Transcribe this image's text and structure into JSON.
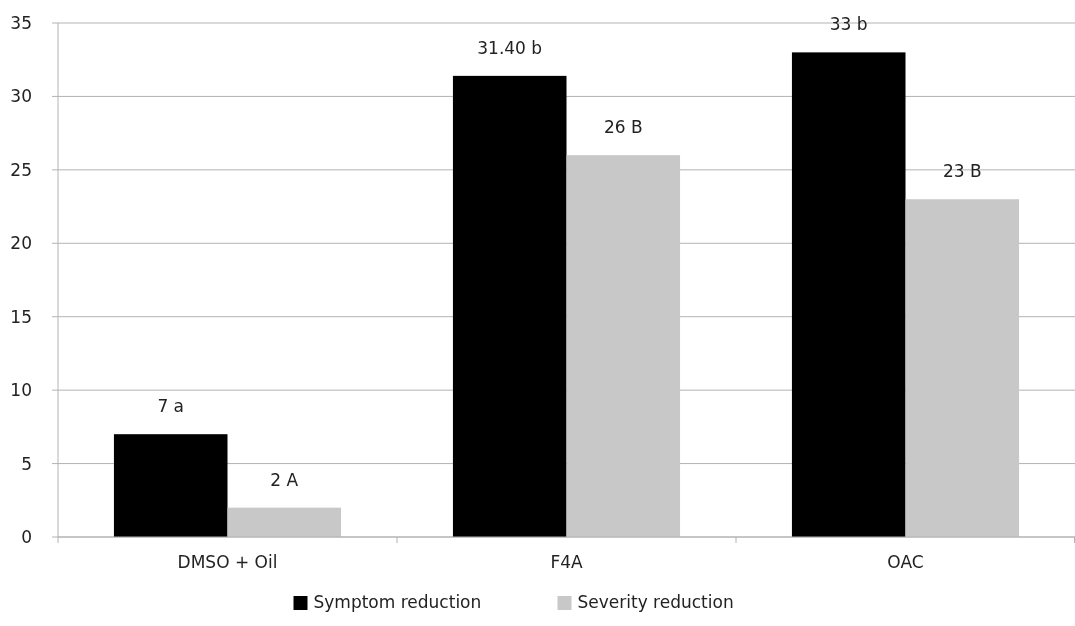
{
  "chart_data": {
    "type": "bar",
    "categories": [
      "DMSO + Oil",
      "F4A",
      "OAC"
    ],
    "series": [
      {
        "name": "Symptom reduction",
        "color": "#000000",
        "values": [
          7,
          31.4,
          33
        ],
        "value_labels": [
          "7 a",
          "31.40 b",
          "33 b"
        ]
      },
      {
        "name": "Severity reduction",
        "color": "#c8c8c8",
        "values": [
          2,
          26,
          23
        ],
        "value_labels": [
          "2 A",
          "26 B",
          "23 B"
        ]
      }
    ],
    "ylim": [
      0,
      35
    ],
    "yticks": [
      0,
      5,
      10,
      15,
      20,
      25,
      30,
      35
    ],
    "grid": "y",
    "legend": "bottom"
  }
}
